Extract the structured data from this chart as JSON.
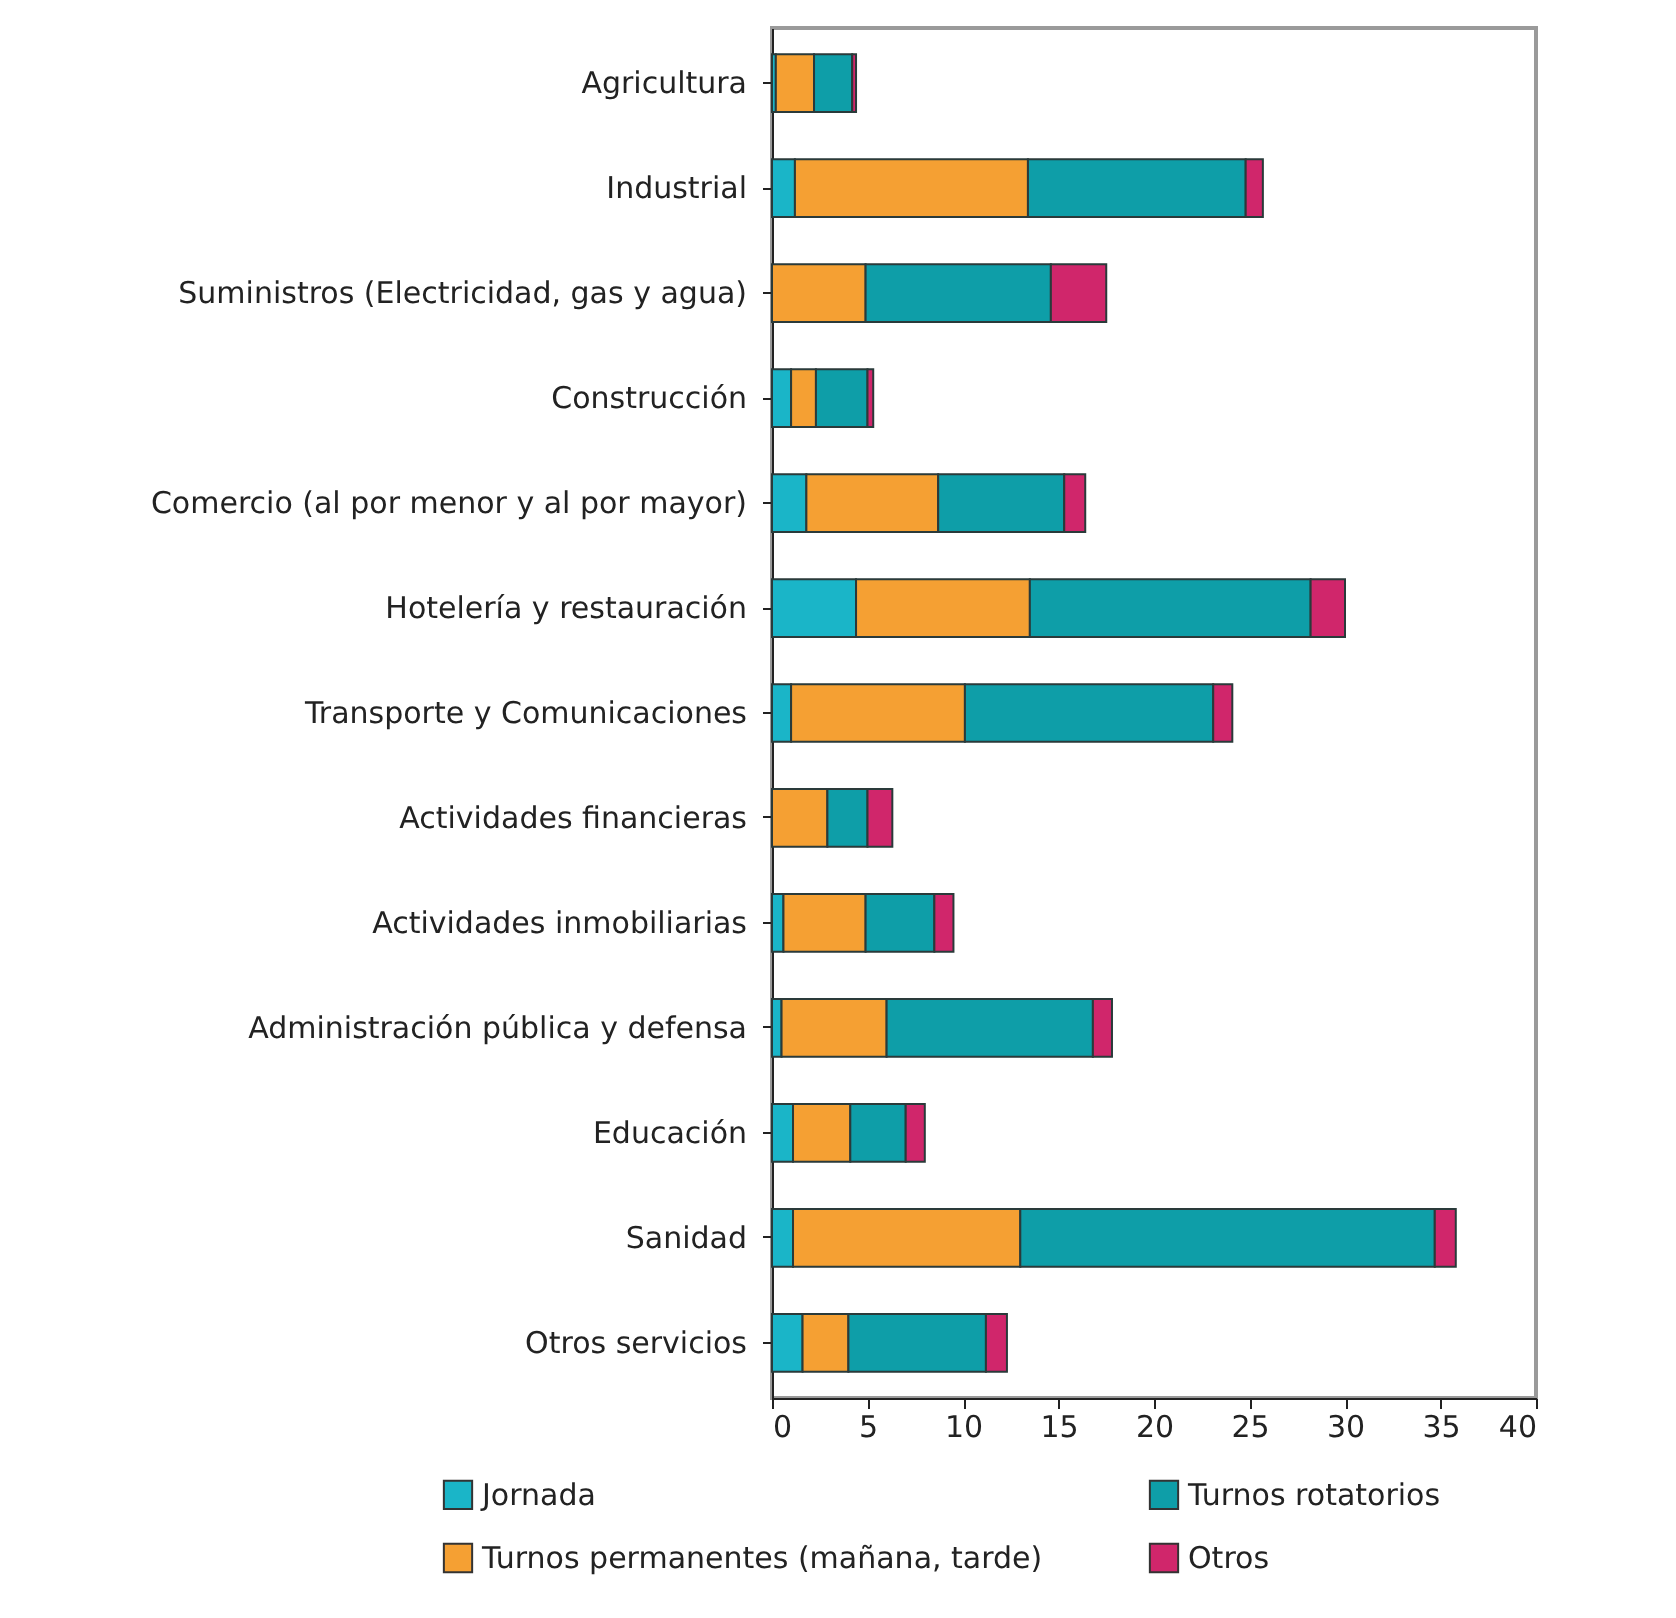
{
  "chart_data": {
    "type": "bar",
    "orientation": "horizontal",
    "stacked": true,
    "legend": "bottom",
    "grid": false,
    "categories": [
      "Agricultura",
      "Industrial",
      "Suministros (Electricidad, gas y agua)",
      "Construcción",
      "Comercio (al por menor y al por mayor)",
      "Hotelería y restauración",
      "Transporte y Comunicaciones",
      "Actividades financieras",
      "Actividades inmobiliarias",
      "Administración pública y defensa",
      "Educación",
      "Sanidad",
      "Otros servicios"
    ],
    "xlim": [
      0,
      40
    ],
    "xticks": [
      0,
      5,
      10,
      15,
      20,
      25,
      30,
      35,
      40
    ],
    "series": [
      {
        "name": "Jornada",
        "color": "#1ab5c8",
        "values": [
          0.2,
          1.2,
          0,
          1.0,
          1.8,
          4.4,
          1.0,
          0,
          0.6,
          0.5,
          1.1,
          1.1,
          1.6
        ]
      },
      {
        "name": "Turnos permanentes (mañana, tarde)",
        "color": "#f5a033",
        "values": [
          2.0,
          12.2,
          4.9,
          1.3,
          6.9,
          9.1,
          9.1,
          2.9,
          4.3,
          5.5,
          3.0,
          11.9,
          2.4
        ]
      },
      {
        "name": "Turnos rotatorios",
        "color": "#0e9ea8",
        "values": [
          2.0,
          11.4,
          9.7,
          2.7,
          6.6,
          14.7,
          13.0,
          2.1,
          3.6,
          10.8,
          2.9,
          21.7,
          7.2
        ]
      },
      {
        "name": "Otros",
        "color": "#d0266b",
        "values": [
          0.2,
          0.9,
          2.9,
          0.3,
          1.1,
          1.8,
          1.0,
          1.3,
          1.0,
          1.0,
          1.0,
          1.1,
          1.1
        ]
      }
    ]
  }
}
